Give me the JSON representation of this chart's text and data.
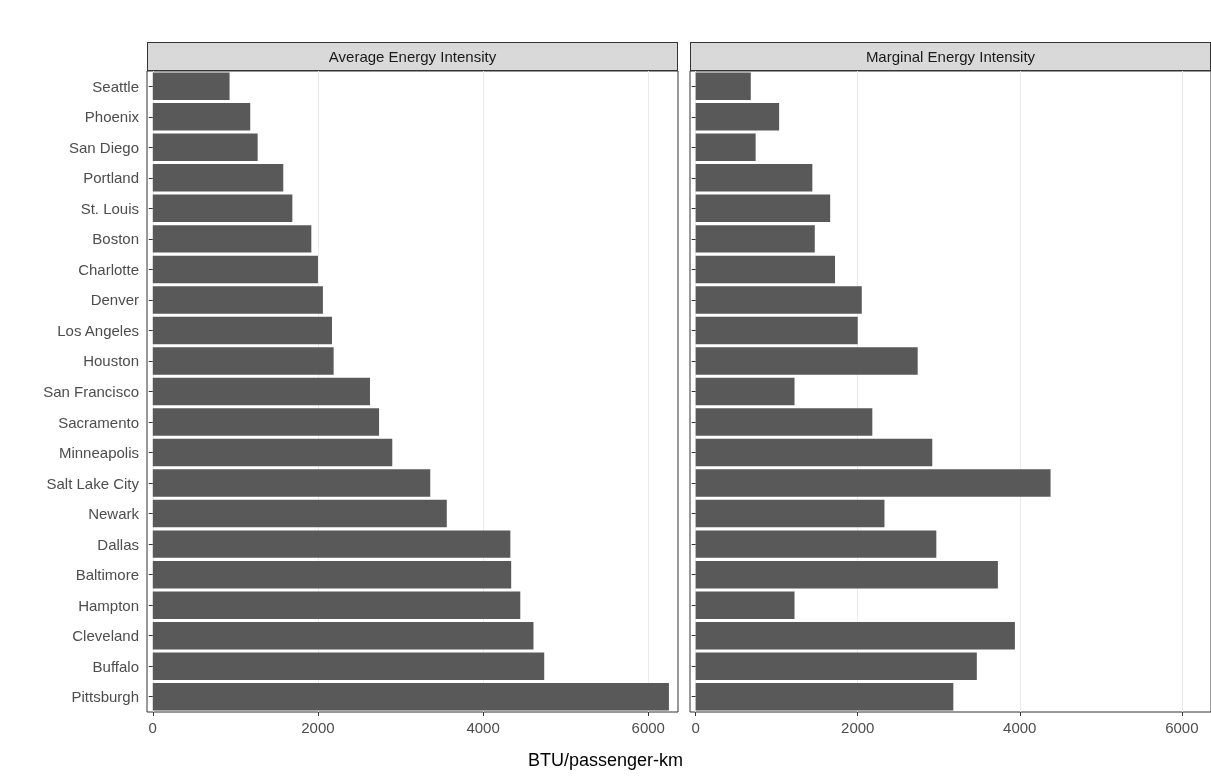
{
  "chart_data": [
    {
      "type": "bar",
      "orientation": "horizontal",
      "title": "Average Energy Intensity",
      "xlabel": "BTU/passenger-km",
      "categories": [
        "Seattle",
        "Phoenix",
        "San Diego",
        "Portland",
        "St. Louis",
        "Boston",
        "Charlotte",
        "Denver",
        "Los Angeles",
        "Houston",
        "San Francisco",
        "Sacramento",
        "Minneapolis",
        "Salt Lake City",
        "Newark",
        "Dallas",
        "Baltimore",
        "Hampton",
        "Cleveland",
        "Buffalo",
        "Pittsburgh"
      ],
      "values": [
        930,
        1180,
        1270,
        1580,
        1690,
        1920,
        2000,
        2060,
        2170,
        2190,
        2630,
        2740,
        2900,
        3360,
        3560,
        4330,
        4340,
        4450,
        4610,
        4740,
        6250
      ],
      "color": "#595959",
      "xlim": [
        -70,
        6360
      ],
      "xticks": [
        0,
        2000,
        4000,
        6000
      ],
      "grid": "x"
    },
    {
      "type": "bar",
      "orientation": "horizontal",
      "title": "Marginal Energy Intensity",
      "categories": [
        null,
        null,
        null,
        null,
        null,
        null,
        null,
        null,
        null,
        null,
        null,
        null,
        null,
        null,
        null,
        null,
        null,
        null,
        null,
        null,
        null
      ],
      "values": [
        680,
        1030,
        740,
        1440,
        1660,
        1470,
        1720,
        2050,
        2000,
        2740,
        1220,
        2180,
        2920,
        4380,
        2330,
        2970,
        3730,
        1220,
        3940,
        3470,
        3180
      ],
      "color": "#595959",
      "xlim": [
        -70,
        6360
      ],
      "xticks": [
        0,
        2000,
        4000,
        6000
      ],
      "grid": "x",
      "tick_labels": "x"
    }
  ]
}
